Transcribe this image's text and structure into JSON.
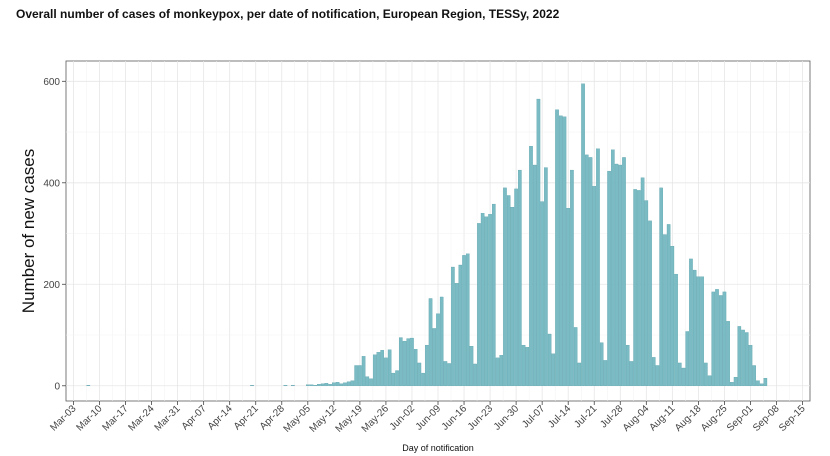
{
  "chart_data": {
    "type": "bar",
    "title": "Overall number of cases of monkeypox, per date of notification, European Region, TESSy, 2022",
    "xlabel": "Day of notification",
    "ylabel": "Number of new cases",
    "ylim": [
      -30,
      640
    ],
    "yticks": [
      0,
      200,
      400,
      600
    ],
    "x_start": "Mar-01",
    "x_end": "Sep-17",
    "xticks": [
      "Mar-03",
      "Mar-10",
      "Mar-17",
      "Mar-24",
      "Mar-31",
      "Apr-07",
      "Apr-14",
      "Apr-21",
      "Apr-28",
      "May-05",
      "May-12",
      "May-19",
      "May-26",
      "Jun-02",
      "Jun-09",
      "Jun-16",
      "Jun-23",
      "Jun-30",
      "Jul-07",
      "Jul-14",
      "Jul-21",
      "Jul-28",
      "Aug-04",
      "Aug-11",
      "Aug-18",
      "Aug-25",
      "Sep-01",
      "Sep-08",
      "Sep-15"
    ],
    "grid": true,
    "bar_color": "#7bbcc4",
    "bar_edge_color": "#4e9aa5",
    "dates": [
      "Mar-07",
      "Apr-20",
      "Apr-29",
      "May-01",
      "May-05",
      "May-06",
      "May-07",
      "May-08",
      "May-09",
      "May-10",
      "May-11",
      "May-12",
      "May-13",
      "May-14",
      "May-15",
      "May-16",
      "May-17",
      "May-18",
      "May-19",
      "May-20",
      "May-21",
      "May-22",
      "May-23",
      "May-24",
      "May-25",
      "May-26",
      "May-27",
      "May-28",
      "May-29",
      "May-30",
      "May-31",
      "Jun-01",
      "Jun-02",
      "Jun-03",
      "Jun-04",
      "Jun-05",
      "Jun-06",
      "Jun-07",
      "Jun-08",
      "Jun-09",
      "Jun-10",
      "Jun-11",
      "Jun-12",
      "Jun-13",
      "Jun-14",
      "Jun-15",
      "Jun-16",
      "Jun-17",
      "Jun-18",
      "Jun-19",
      "Jun-20",
      "Jun-21",
      "Jun-22",
      "Jun-23",
      "Jun-24",
      "Jun-25",
      "Jun-26",
      "Jun-27",
      "Jun-28",
      "Jun-29",
      "Jun-30",
      "Jul-01",
      "Jul-02",
      "Jul-03",
      "Jul-04",
      "Jul-05",
      "Jul-06",
      "Jul-07",
      "Jul-08",
      "Jul-09",
      "Jul-10",
      "Jul-11",
      "Jul-12",
      "Jul-13",
      "Jul-14",
      "Jul-15",
      "Jul-16",
      "Jul-17",
      "Jul-18",
      "Jul-19",
      "Jul-20",
      "Jul-21",
      "Jul-22",
      "Jul-23",
      "Jul-24",
      "Jul-25",
      "Jul-26",
      "Jul-27",
      "Jul-28",
      "Jul-29",
      "Jul-30",
      "Jul-31",
      "Aug-01",
      "Aug-02",
      "Aug-03",
      "Aug-04",
      "Aug-05",
      "Aug-06",
      "Aug-07",
      "Aug-08",
      "Aug-09",
      "Aug-10",
      "Aug-11",
      "Aug-12",
      "Aug-13",
      "Aug-14",
      "Aug-15",
      "Aug-16",
      "Aug-17",
      "Aug-18",
      "Aug-19",
      "Aug-20",
      "Aug-21",
      "Aug-22",
      "Aug-23",
      "Aug-24",
      "Aug-25",
      "Aug-26",
      "Aug-27",
      "Aug-28",
      "Aug-29",
      "Aug-30",
      "Aug-31",
      "Sep-01",
      "Sep-02",
      "Sep-03",
      "Sep-04",
      "Sep-05"
    ],
    "values": [
      1,
      1,
      1,
      1,
      2,
      2,
      1,
      3,
      4,
      5,
      3,
      6,
      7,
      4,
      6,
      8,
      10,
      40,
      40,
      58,
      18,
      14,
      61,
      66,
      70,
      55,
      71,
      25,
      30,
      95,
      88,
      93,
      94,
      72,
      45,
      25,
      80,
      172,
      113,
      142,
      175,
      48,
      44,
      234,
      202,
      238,
      257,
      260,
      78,
      43,
      320,
      340,
      333,
      338,
      358,
      55,
      60,
      390,
      375,
      352,
      388,
      425,
      80,
      76,
      472,
      435,
      565,
      363,
      430,
      102,
      63,
      544,
      532,
      530,
      350,
      425,
      115,
      45,
      595,
      455,
      450,
      393,
      467,
      85,
      50,
      423,
      465,
      437,
      435,
      450,
      80,
      48,
      387,
      385,
      410,
      365,
      325,
      56,
      40,
      390,
      298,
      318,
      275,
      220,
      45,
      35,
      107,
      250,
      228,
      215,
      215,
      45,
      20,
      185,
      190,
      178,
      185,
      127,
      7,
      17,
      117,
      110,
      105,
      80,
      40,
      10,
      4,
      15
    ]
  }
}
